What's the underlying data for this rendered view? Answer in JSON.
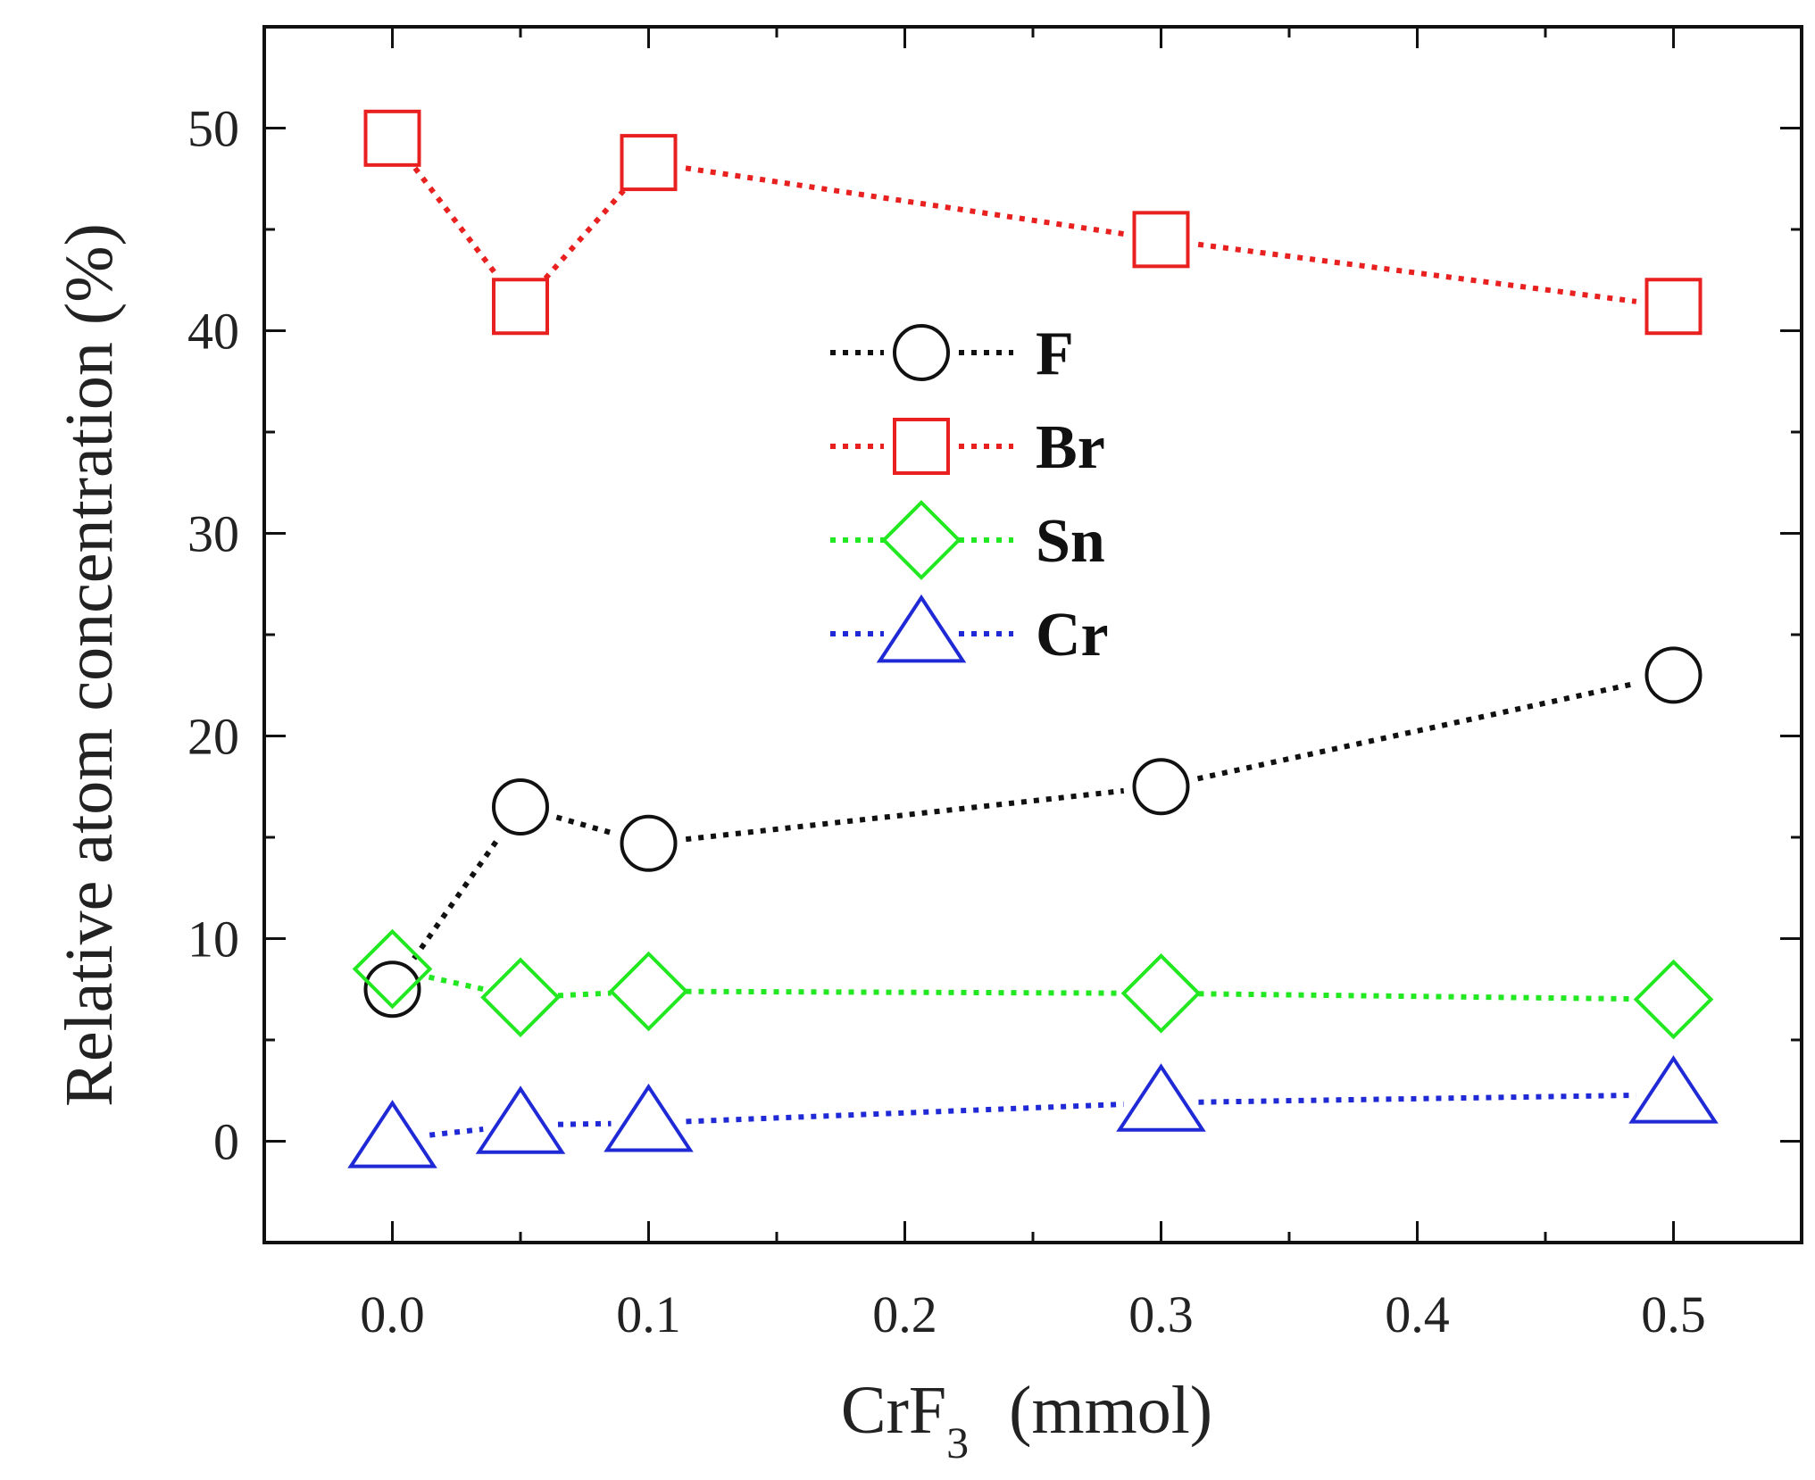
{
  "chart_data": {
    "type": "line",
    "title": "",
    "xlabel": "CrF3 (mmol)",
    "xlabel_parts": {
      "base": "CrF",
      "sub": "3",
      "unit": "(mmol)"
    },
    "ylabel": "Relative atom concentration (%)",
    "x": [
      0.0,
      0.05,
      0.1,
      0.3,
      0.5
    ],
    "xlim": [
      -0.05,
      0.55
    ],
    "ylim": [
      -5,
      55
    ],
    "xticks": [
      "0.0",
      "0.1",
      "0.2",
      "0.3",
      "0.4",
      "0.5"
    ],
    "xtick_values": [
      0.0,
      0.1,
      0.2,
      0.3,
      0.4,
      0.5
    ],
    "yticks": [
      "0",
      "10",
      "20",
      "30",
      "40",
      "50"
    ],
    "ytick_values": [
      0,
      10,
      20,
      30,
      40,
      50
    ],
    "grid": false,
    "legend_position": "center",
    "series": [
      {
        "name": "F",
        "marker": "circle",
        "color": "#111111",
        "values": [
          7.5,
          16.5,
          14.7,
          17.5,
          23.0
        ]
      },
      {
        "name": "Br",
        "marker": "square",
        "color": "#e8201f",
        "values": [
          49.5,
          41.2,
          48.3,
          44.5,
          41.2
        ]
      },
      {
        "name": "Sn",
        "marker": "diamond",
        "color": "#22e822",
        "values": [
          8.5,
          7.1,
          7.4,
          7.3,
          7.0
        ]
      },
      {
        "name": "Cr",
        "marker": "triangle",
        "color": "#1f2ad6",
        "values": [
          0.1,
          0.8,
          0.9,
          1.9,
          2.3
        ]
      }
    ]
  }
}
